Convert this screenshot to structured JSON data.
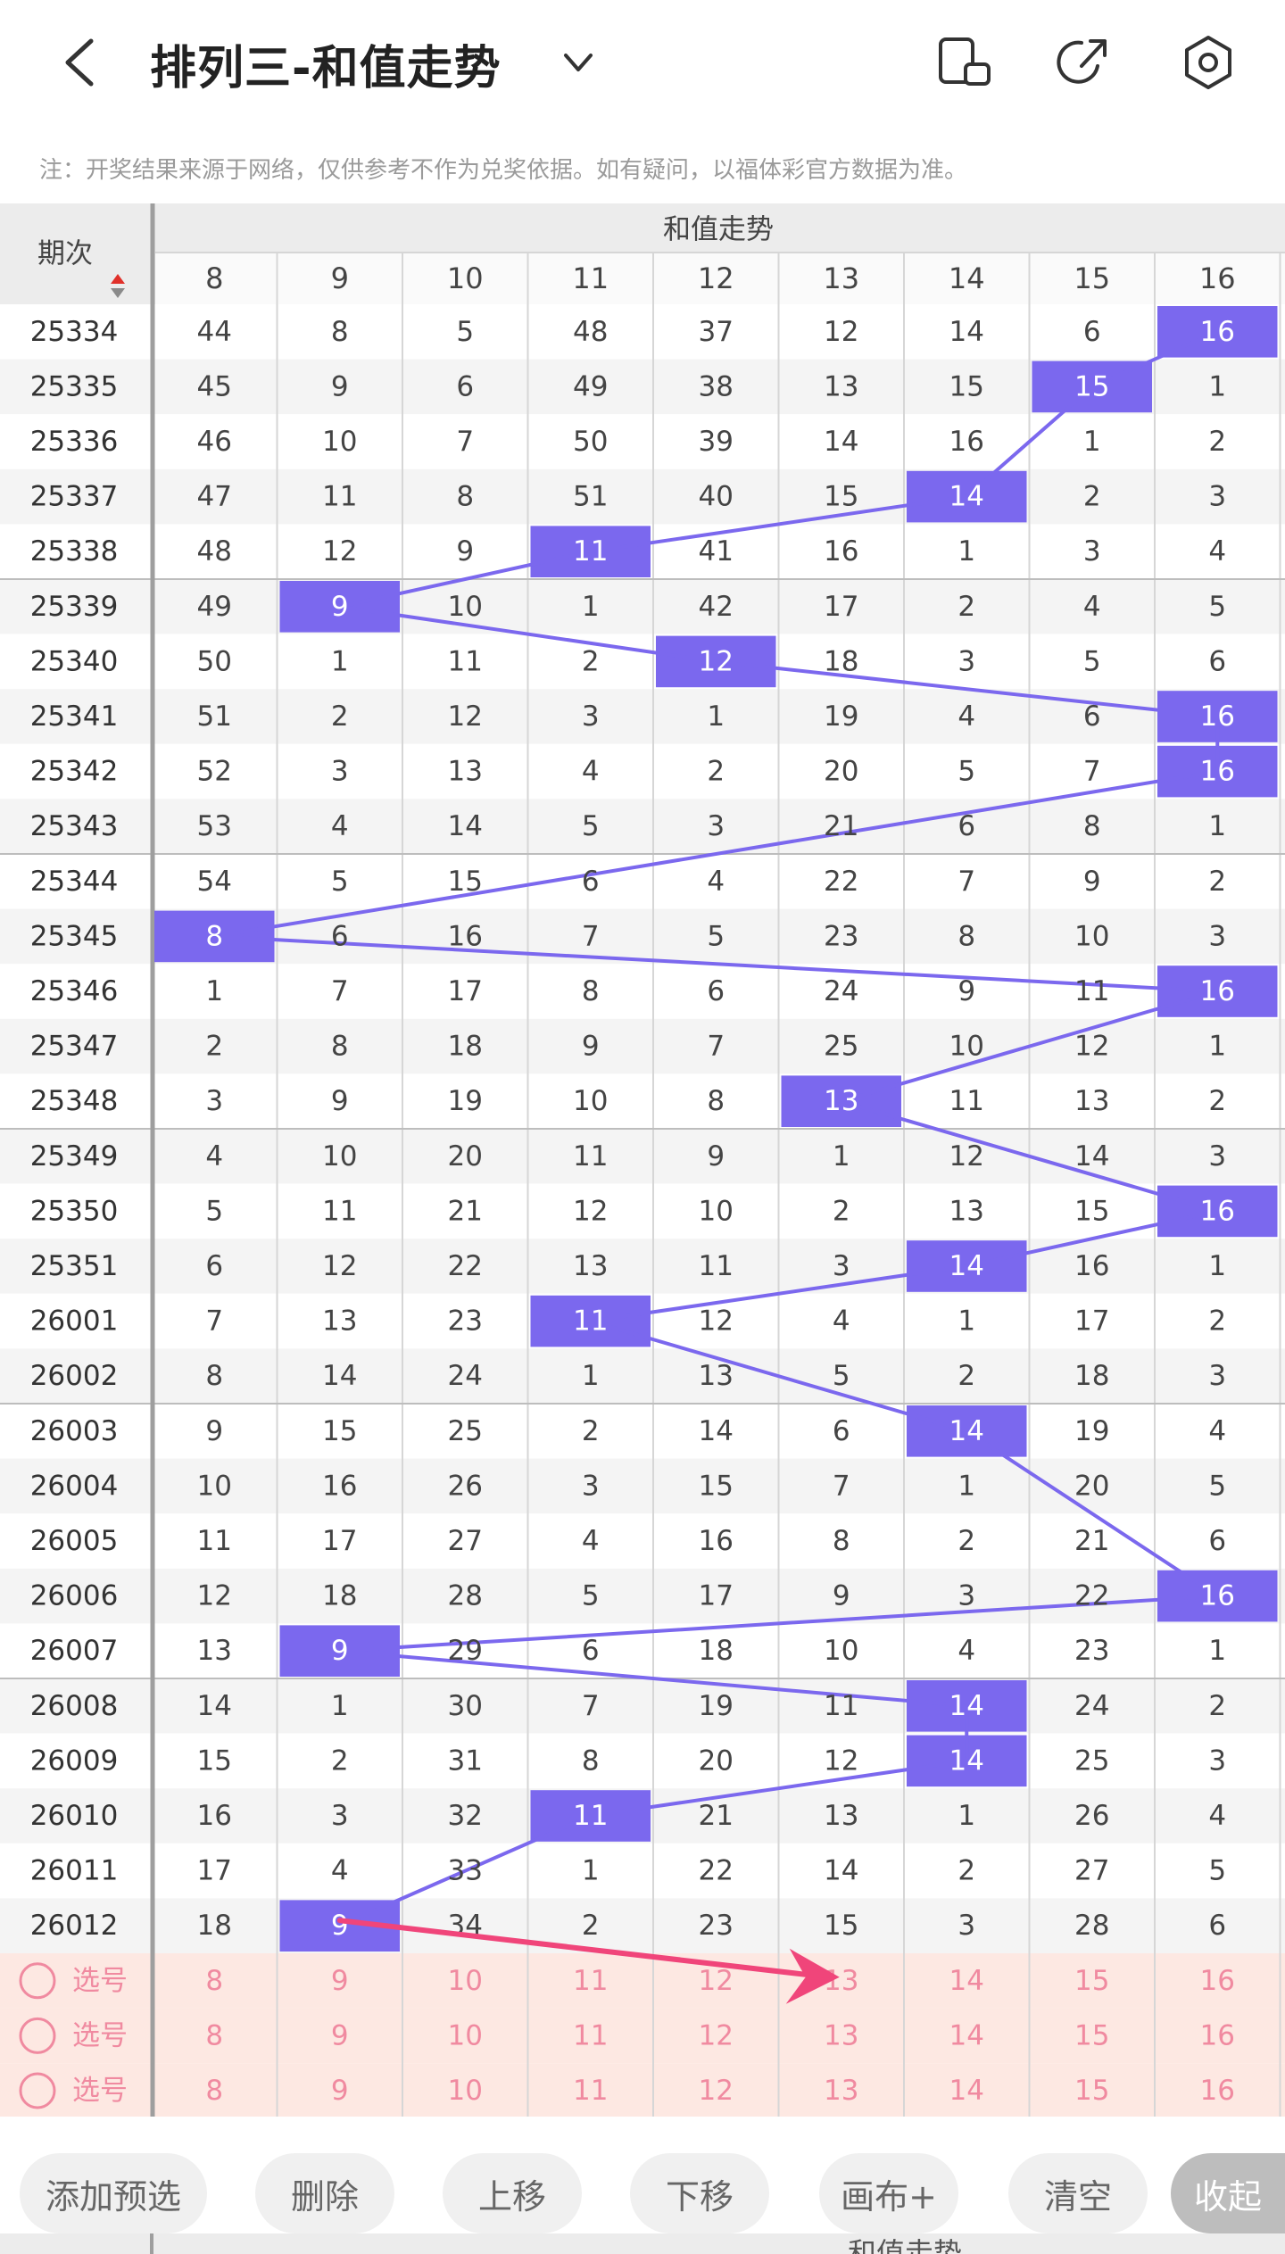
{
  "header": {
    "title": "排列三-和值走势",
    "back_icon": "back-chevron-icon",
    "title_dropdown_icon": "chevron-down-icon",
    "actions": [
      "rotate-phone-icon",
      "share-export-icon",
      "settings-gear-icon"
    ]
  },
  "notice": "注：开奖结果来源于网络，仅供参考不作为兑奖依据。如有疑问，以福体彩官方数据为准。",
  "table": {
    "period_header": "期次",
    "group_header": "和值走势",
    "columns": [
      "8",
      "9",
      "10",
      "11",
      "12",
      "13",
      "14",
      "15",
      "16"
    ],
    "rows": [
      {
        "period": "25334",
        "cells": [
          "44",
          "8",
          "5",
          "48",
          "37",
          "12",
          "14",
          "6",
          "16"
        ],
        "hit": 8
      },
      {
        "period": "25335",
        "cells": [
          "45",
          "9",
          "6",
          "49",
          "38",
          "13",
          "15",
          "15",
          "1"
        ],
        "hit": 7
      },
      {
        "period": "25336",
        "cells": [
          "46",
          "10",
          "7",
          "50",
          "39",
          "14",
          "16",
          "1",
          "2"
        ],
        "hit": -1
      },
      {
        "period": "25337",
        "cells": [
          "47",
          "11",
          "8",
          "51",
          "40",
          "15",
          "14",
          "2",
          "3"
        ],
        "hit": 6
      },
      {
        "period": "25338",
        "cells": [
          "48",
          "12",
          "9",
          "11",
          "41",
          "16",
          "1",
          "3",
          "4"
        ],
        "hit": 3
      },
      {
        "period": "25339",
        "cells": [
          "49",
          "9",
          "10",
          "1",
          "42",
          "17",
          "2",
          "4",
          "5"
        ],
        "hit": 1
      },
      {
        "period": "25340",
        "cells": [
          "50",
          "1",
          "11",
          "2",
          "12",
          "18",
          "3",
          "5",
          "6"
        ],
        "hit": 4
      },
      {
        "period": "25341",
        "cells": [
          "51",
          "2",
          "12",
          "3",
          "1",
          "19",
          "4",
          "6",
          "16"
        ],
        "hit": 8
      },
      {
        "period": "25342",
        "cells": [
          "52",
          "3",
          "13",
          "4",
          "2",
          "20",
          "5",
          "7",
          "16"
        ],
        "hit": 8
      },
      {
        "period": "25343",
        "cells": [
          "53",
          "4",
          "14",
          "5",
          "3",
          "21",
          "6",
          "8",
          "1"
        ],
        "hit": -1
      },
      {
        "period": "25344",
        "cells": [
          "54",
          "5",
          "15",
          "6",
          "4",
          "22",
          "7",
          "9",
          "2"
        ],
        "hit": -1
      },
      {
        "period": "25345",
        "cells": [
          "8",
          "6",
          "16",
          "7",
          "5",
          "23",
          "8",
          "10",
          "3"
        ],
        "hit": 0
      },
      {
        "period": "25346",
        "cells": [
          "1",
          "7",
          "17",
          "8",
          "6",
          "24",
          "9",
          "11",
          "16"
        ],
        "hit": 8
      },
      {
        "period": "25347",
        "cells": [
          "2",
          "8",
          "18",
          "9",
          "7",
          "25",
          "10",
          "12",
          "1"
        ],
        "hit": -1
      },
      {
        "period": "25348",
        "cells": [
          "3",
          "9",
          "19",
          "10",
          "8",
          "13",
          "11",
          "13",
          "2"
        ],
        "hit": 5
      },
      {
        "period": "25349",
        "cells": [
          "4",
          "10",
          "20",
          "11",
          "9",
          "1",
          "12",
          "14",
          "3"
        ],
        "hit": -1
      },
      {
        "period": "25350",
        "cells": [
          "5",
          "11",
          "21",
          "12",
          "10",
          "2",
          "13",
          "15",
          "16"
        ],
        "hit": 8
      },
      {
        "period": "25351",
        "cells": [
          "6",
          "12",
          "22",
          "13",
          "11",
          "3",
          "14",
          "16",
          "1"
        ],
        "hit": 6
      },
      {
        "period": "26001",
        "cells": [
          "7",
          "13",
          "23",
          "11",
          "12",
          "4",
          "1",
          "17",
          "2"
        ],
        "hit": 3
      },
      {
        "period": "26002",
        "cells": [
          "8",
          "14",
          "24",
          "1",
          "13",
          "5",
          "2",
          "18",
          "3"
        ],
        "hit": -1
      },
      {
        "period": "26003",
        "cells": [
          "9",
          "15",
          "25",
          "2",
          "14",
          "6",
          "14",
          "19",
          "4"
        ],
        "hit": 6
      },
      {
        "period": "26004",
        "cells": [
          "10",
          "16",
          "26",
          "3",
          "15",
          "7",
          "1",
          "20",
          "5"
        ],
        "hit": -1
      },
      {
        "period": "26005",
        "cells": [
          "11",
          "17",
          "27",
          "4",
          "16",
          "8",
          "2",
          "21",
          "6"
        ],
        "hit": -1
      },
      {
        "period": "26006",
        "cells": [
          "12",
          "18",
          "28",
          "5",
          "17",
          "9",
          "3",
          "22",
          "16"
        ],
        "hit": 8
      },
      {
        "period": "26007",
        "cells": [
          "13",
          "9",
          "29",
          "6",
          "18",
          "10",
          "4",
          "23",
          "1"
        ],
        "hit": 1
      },
      {
        "period": "26008",
        "cells": [
          "14",
          "1",
          "30",
          "7",
          "19",
          "11",
          "14",
          "24",
          "2"
        ],
        "hit": 6
      },
      {
        "period": "26009",
        "cells": [
          "15",
          "2",
          "31",
          "8",
          "20",
          "12",
          "14",
          "25",
          "3"
        ],
        "hit": 6
      },
      {
        "period": "26010",
        "cells": [
          "16",
          "3",
          "32",
          "11",
          "21",
          "13",
          "1",
          "26",
          "4"
        ],
        "hit": 3
      },
      {
        "period": "26011",
        "cells": [
          "17",
          "4",
          "33",
          "1",
          "22",
          "14",
          "2",
          "27",
          "5"
        ],
        "hit": -1
      },
      {
        "period": "26012",
        "cells": [
          "18",
          "9",
          "34",
          "2",
          "23",
          "15",
          "3",
          "28",
          "6"
        ],
        "hit": 1
      }
    ],
    "select_rows": [
      {
        "label": "选号",
        "cells": [
          "8",
          "9",
          "10",
          "11",
          "12",
          "13",
          "14",
          "15",
          "16"
        ]
      },
      {
        "label": "选号",
        "cells": [
          "8",
          "9",
          "10",
          "11",
          "12",
          "13",
          "14",
          "15",
          "16"
        ]
      },
      {
        "label": "选号",
        "cells": [
          "8",
          "9",
          "10",
          "11",
          "12",
          "13",
          "14",
          "15",
          "16"
        ]
      }
    ]
  },
  "bottom_buttons": [
    "添加预选",
    "删除",
    "上移",
    "下移",
    "画布+",
    "清空",
    "收起"
  ],
  "bottom_strip_text": "和值走势",
  "colors": {
    "hit_fill": "#7b68ee",
    "trend_line": "#7b68ee",
    "arrow": "#f0457a",
    "select_bg": "#fde8e2",
    "select_text": "#f08aa0",
    "grid_line": "#d6d6d6",
    "row_alt_bg": "#f4f4f4",
    "header_bg": "#ececec",
    "sort_up": "#e0302a",
    "sort_down": "#8a8a8a"
  }
}
